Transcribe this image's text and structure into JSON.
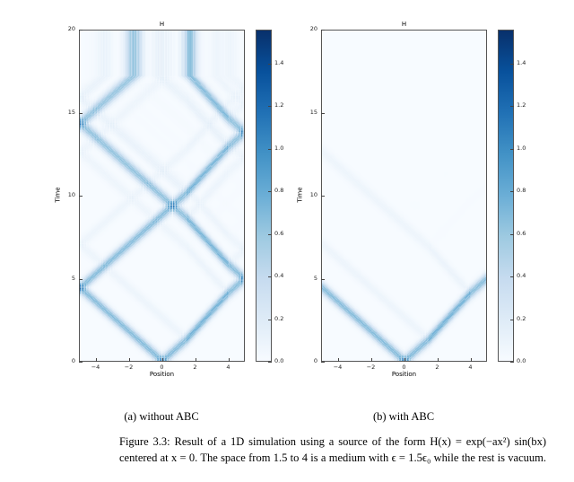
{
  "colormap": "Blues",
  "panels": [
    {
      "title": "H",
      "xlabel": "Position",
      "ylabel": "Time",
      "subcaption": "(a) without ABC",
      "boundary": "reflecting",
      "x_ticks": [
        "−4",
        "−2",
        "0",
        "2",
        "4"
      ],
      "y_ticks": [
        "0",
        "5",
        "10",
        "15",
        "20"
      ],
      "colorbar_ticks": [
        "0.0",
        "0.2",
        "0.4",
        "0.6",
        "0.8",
        "1.0",
        "1.2",
        "1.4"
      ]
    },
    {
      "title": "H",
      "xlabel": "Position",
      "ylabel": "Time",
      "subcaption": "(b) with ABC",
      "boundary": "absorbing",
      "x_ticks": [
        "−4",
        "−2",
        "0",
        "2",
        "4"
      ],
      "y_ticks": [
        "0",
        "5",
        "10",
        "15",
        "20"
      ],
      "colorbar_ticks": [
        "0.0",
        "0.2",
        "0.4",
        "0.6",
        "0.8",
        "1.0",
        "1.2",
        "1.4"
      ]
    }
  ],
  "chart_data": [
    {
      "type": "heatmap",
      "title": "H",
      "xlabel": "Position",
      "ylabel": "Time",
      "xlim": [
        -5,
        5
      ],
      "ylim": [
        0,
        20
      ],
      "colorbar_range": [
        0,
        1.56
      ],
      "boundary": "reflecting"
    },
    {
      "type": "heatmap",
      "title": "H",
      "xlabel": "Position",
      "ylabel": "Time",
      "xlim": [
        -5,
        5
      ],
      "ylim": [
        0,
        20
      ],
      "colorbar_range": [
        0,
        1.56
      ],
      "boundary": "absorbing"
    }
  ],
  "caption": {
    "line1": "Figure 3.3: Result of a 1D simulation using a source of the form H(x) = exp(−ax²) sin(bx)",
    "line2": "centered at x = 0. The space from 1.5 to 4 is a medium with ϵ = 1.5ϵ₀ while the rest is vacuum."
  }
}
